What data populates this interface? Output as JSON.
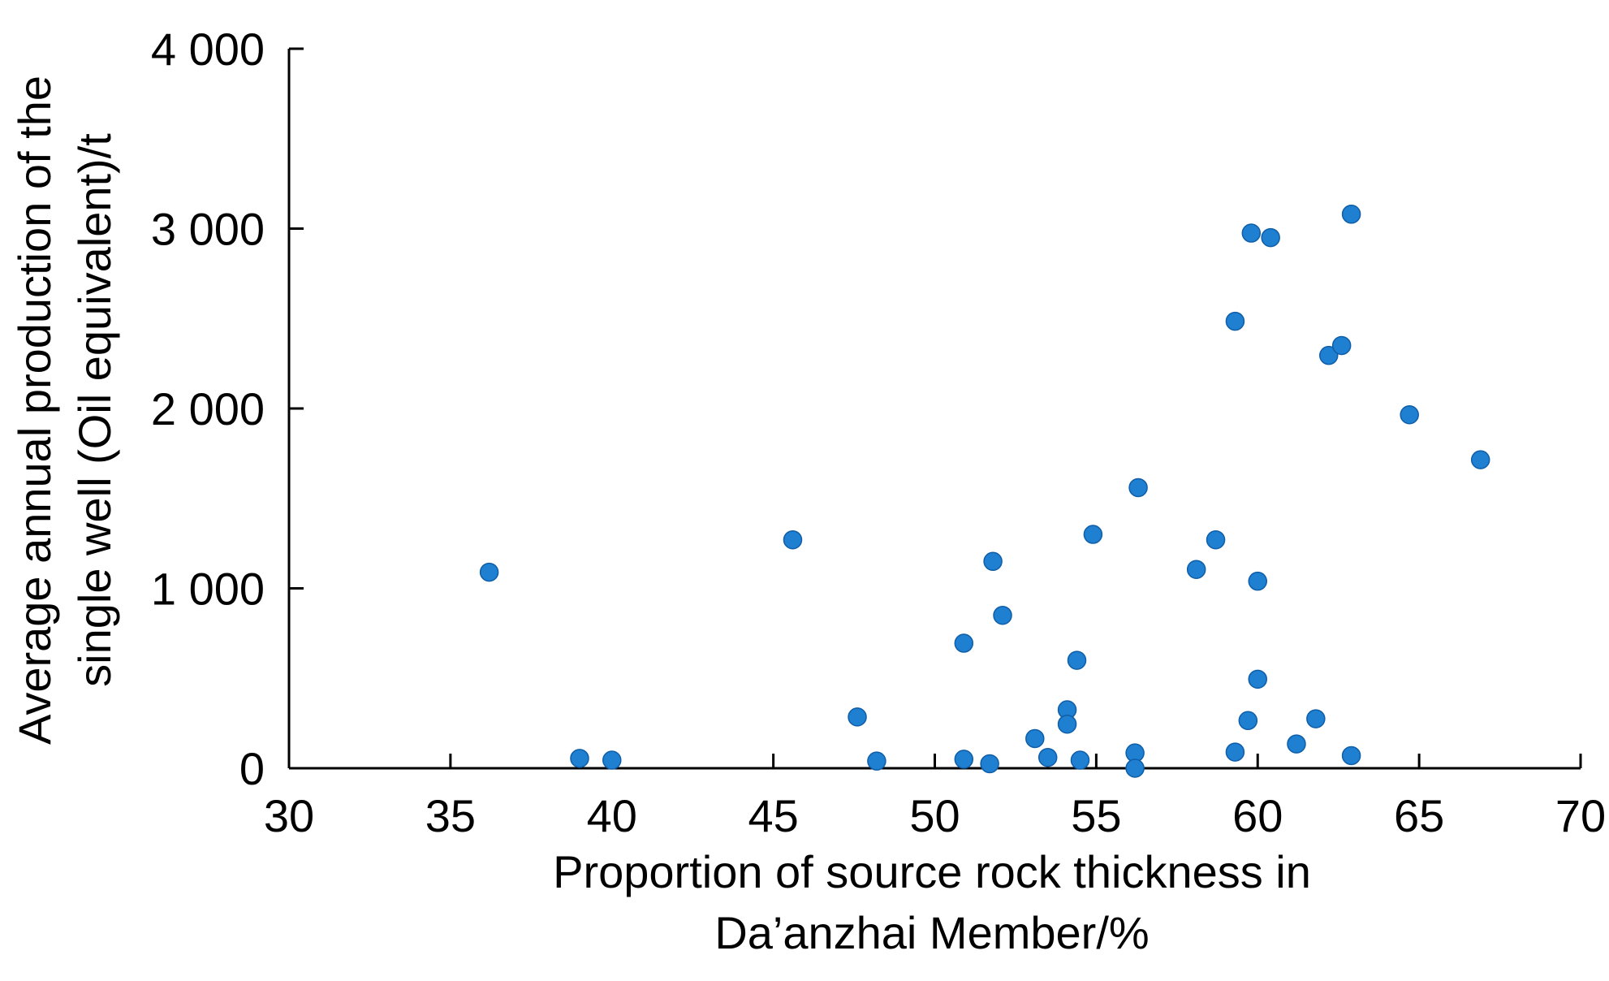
{
  "chart_data": {
    "type": "scatter",
    "title": "",
    "xlabel": [
      "Proportion of source rock thickness in",
      "Da’anzhai Member/%"
    ],
    "ylabel": [
      "Average annual production of the",
      "single well (Oil equivalent)/t"
    ],
    "xlim": [
      30,
      70
    ],
    "ylim": [
      0,
      4000
    ],
    "x_ticks": [
      {
        "value": 30,
        "label": "30"
      },
      {
        "value": 35,
        "label": "35"
      },
      {
        "value": 40,
        "label": "40"
      },
      {
        "value": 45,
        "label": "45"
      },
      {
        "value": 50,
        "label": "50"
      },
      {
        "value": 55,
        "label": "55"
      },
      {
        "value": 60,
        "label": "60"
      },
      {
        "value": 65,
        "label": "65"
      },
      {
        "value": 70,
        "label": "70"
      }
    ],
    "y_ticks": [
      {
        "value": 0,
        "label": "0"
      },
      {
        "value": 1000,
        "label": "1 000"
      },
      {
        "value": 2000,
        "label": "2 000"
      },
      {
        "value": 3000,
        "label": "3 000"
      },
      {
        "value": 4000,
        "label": "4 000"
      }
    ],
    "grid": false,
    "legend": "none",
    "marker_color": "#1f7fd1",
    "marker_edge_color": "#0f5ea8",
    "points": [
      {
        "x": 36.2,
        "y": 1090
      },
      {
        "x": 39.0,
        "y": 55
      },
      {
        "x": 40.0,
        "y": 45
      },
      {
        "x": 45.6,
        "y": 1270
      },
      {
        "x": 47.6,
        "y": 285
      },
      {
        "x": 48.2,
        "y": 40
      },
      {
        "x": 50.9,
        "y": 695
      },
      {
        "x": 50.9,
        "y": 50
      },
      {
        "x": 51.7,
        "y": 25
      },
      {
        "x": 51.8,
        "y": 1150
      },
      {
        "x": 52.1,
        "y": 850
      },
      {
        "x": 53.1,
        "y": 165
      },
      {
        "x": 53.5,
        "y": 60
      },
      {
        "x": 54.1,
        "y": 325
      },
      {
        "x": 54.1,
        "y": 245
      },
      {
        "x": 54.4,
        "y": 600
      },
      {
        "x": 54.5,
        "y": 45
      },
      {
        "x": 54.9,
        "y": 1300
      },
      {
        "x": 56.2,
        "y": 85
      },
      {
        "x": 56.2,
        "y": 0
      },
      {
        "x": 56.3,
        "y": 1560
      },
      {
        "x": 58.1,
        "y": 1105
      },
      {
        "x": 58.7,
        "y": 1270
      },
      {
        "x": 59.3,
        "y": 2485
      },
      {
        "x": 59.3,
        "y": 90
      },
      {
        "x": 59.7,
        "y": 265
      },
      {
        "x": 59.8,
        "y": 2975
      },
      {
        "x": 60.0,
        "y": 1040
      },
      {
        "x": 60.0,
        "y": 495
      },
      {
        "x": 60.4,
        "y": 2950
      },
      {
        "x": 61.2,
        "y": 135
      },
      {
        "x": 61.8,
        "y": 275
      },
      {
        "x": 62.2,
        "y": 2295
      },
      {
        "x": 62.6,
        "y": 2350
      },
      {
        "x": 62.9,
        "y": 3080
      },
      {
        "x": 62.9,
        "y": 70
      },
      {
        "x": 64.7,
        "y": 1965
      },
      {
        "x": 66.9,
        "y": 1715
      }
    ]
  }
}
